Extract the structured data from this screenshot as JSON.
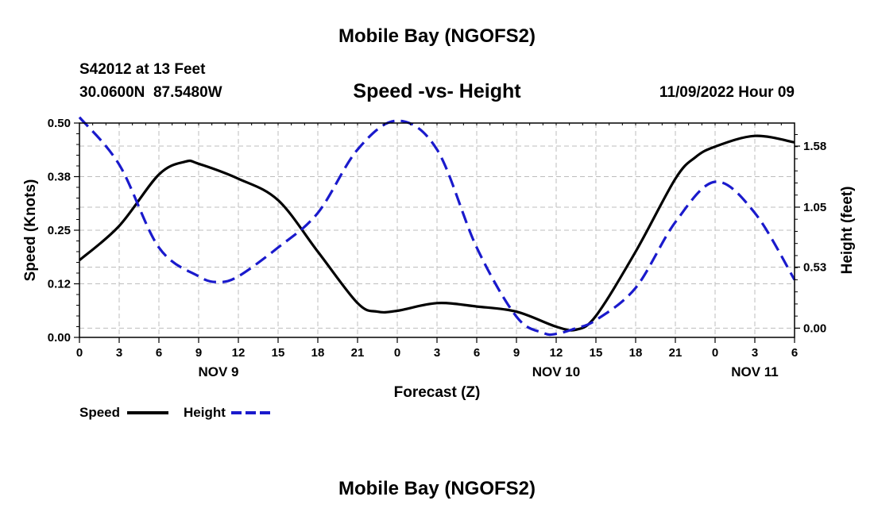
{
  "header": {
    "title": "Mobile Bay (NGOFS2)",
    "station_line": "S42012 at 13 Feet",
    "coords_line": "30.0600N  87.5480W",
    "chart_title": "Speed -vs- Height",
    "timestamp": "11/09/2022 Hour 09"
  },
  "footer": {
    "title": "Mobile Bay (NGOFS2)"
  },
  "chart_data": {
    "type": "line",
    "title": "Speed -vs- Height",
    "xlabel": "Forecast (Z)",
    "ylabel_left": "Speed (Knots)",
    "ylabel_right": "Height (feet)",
    "x_range_hours": [
      0,
      54
    ],
    "ylim_left": [
      0,
      0.5
    ],
    "ylim_right": [
      -0.08,
      1.78
    ],
    "x_ticks": [
      {
        "h": 0,
        "label": "0"
      },
      {
        "h": 3,
        "label": "3"
      },
      {
        "h": 6,
        "label": "6"
      },
      {
        "h": 9,
        "label": "9"
      },
      {
        "h": 12,
        "label": "12"
      },
      {
        "h": 15,
        "label": "15"
      },
      {
        "h": 18,
        "label": "18"
      },
      {
        "h": 21,
        "label": "21"
      },
      {
        "h": 24,
        "label": "0"
      },
      {
        "h": 27,
        "label": "3"
      },
      {
        "h": 30,
        "label": "6"
      },
      {
        "h": 33,
        "label": "9"
      },
      {
        "h": 36,
        "label": "12"
      },
      {
        "h": 39,
        "label": "15"
      },
      {
        "h": 42,
        "label": "18"
      },
      {
        "h": 45,
        "label": "21"
      },
      {
        "h": 48,
        "label": "0"
      },
      {
        "h": 51,
        "label": "3"
      },
      {
        "h": 54,
        "label": "6"
      }
    ],
    "date_labels": [
      {
        "h": 10.5,
        "label": "NOV 9"
      },
      {
        "h": 36,
        "label": "NOV 10"
      },
      {
        "h": 51,
        "label": "NOV 11"
      }
    ],
    "y_ticks_left": [
      {
        "v": 0.0,
        "label": "0.00"
      },
      {
        "v": 0.125,
        "label": "0.12"
      },
      {
        "v": 0.25,
        "label": "0.25"
      },
      {
        "v": 0.375,
        "label": "0.38"
      },
      {
        "v": 0.5,
        "label": "0.50"
      }
    ],
    "y_ticks_right": [
      {
        "v": 0.0,
        "label": "0.00"
      },
      {
        "v": 0.53,
        "label": "0.53"
      },
      {
        "v": 1.05,
        "label": "1.05"
      },
      {
        "v": 1.58,
        "label": "1.58"
      }
    ],
    "grid": true,
    "legend_position": "bottom-left",
    "series": [
      {
        "name": "Speed",
        "axis": "left",
        "color": "#000000",
        "dash": "solid",
        "points": [
          [
            0,
            0.18
          ],
          [
            3,
            0.26
          ],
          [
            6,
            0.38
          ],
          [
            8,
            0.41
          ],
          [
            9,
            0.405
          ],
          [
            12,
            0.37
          ],
          [
            15,
            0.32
          ],
          [
            18,
            0.2
          ],
          [
            21,
            0.08
          ],
          [
            22.5,
            0.06
          ],
          [
            24,
            0.062
          ],
          [
            27,
            0.08
          ],
          [
            30,
            0.072
          ],
          [
            33,
            0.06
          ],
          [
            36,
            0.025
          ],
          [
            37.5,
            0.018
          ],
          [
            39,
            0.05
          ],
          [
            42,
            0.2
          ],
          [
            45,
            0.37
          ],
          [
            46.5,
            0.42
          ],
          [
            48,
            0.445
          ],
          [
            51,
            0.47
          ],
          [
            54,
            0.455
          ]
        ]
      },
      {
        "name": "Height",
        "axis": "right",
        "color": "#1a1acc",
        "dash": "dashed",
        "points": [
          [
            0,
            1.83
          ],
          [
            3,
            1.42
          ],
          [
            6,
            0.7
          ],
          [
            9,
            0.45
          ],
          [
            10.5,
            0.4
          ],
          [
            12,
            0.45
          ],
          [
            15,
            0.7
          ],
          [
            18,
            1.0
          ],
          [
            21,
            1.55
          ],
          [
            24,
            1.8
          ],
          [
            27,
            1.55
          ],
          [
            30,
            0.7
          ],
          [
            33,
            0.1
          ],
          [
            35,
            -0.04
          ],
          [
            36,
            -0.05
          ],
          [
            37.5,
            0.0
          ],
          [
            39,
            0.07
          ],
          [
            42,
            0.35
          ],
          [
            45,
            0.92
          ],
          [
            48,
            1.27
          ],
          [
            51,
            1.0
          ],
          [
            54,
            0.42
          ]
        ]
      }
    ]
  }
}
